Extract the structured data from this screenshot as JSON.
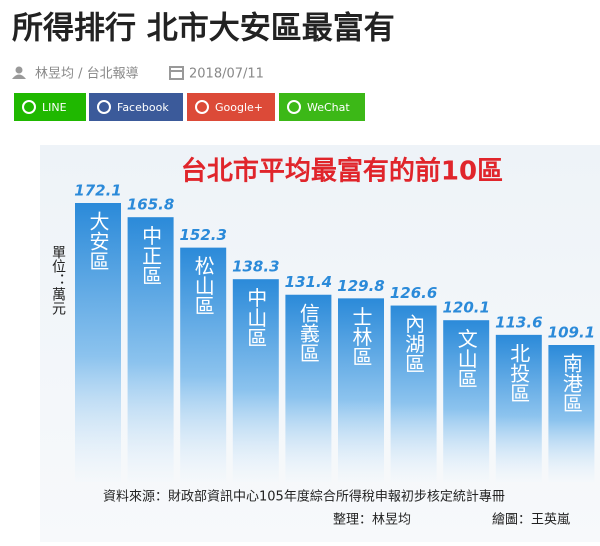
{
  "header": {
    "title": "所得排行 北市大安區最富有",
    "author": "林昱均 / 台北報導",
    "date": "2018/07/11"
  },
  "share_buttons": [
    {
      "label": "LINE",
      "color": "#1fb800"
    },
    {
      "label": "Facebook",
      "color": "#3b5a9a"
    },
    {
      "label": "Google+",
      "color": "#dc4a38"
    },
    {
      "label": "WeChat",
      "color": "#3cb817"
    }
  ],
  "chart_data": {
    "type": "bar",
    "title": "台北市平均最富有的前10區",
    "unit_label": "單位：萬元",
    "categories": [
      "大安區",
      "中正區",
      "松山區",
      "中山區",
      "信義區",
      "士林區",
      "內湖區",
      "文山區",
      "北投區",
      "南港區"
    ],
    "values": [
      172.1,
      165.8,
      152.3,
      138.3,
      131.4,
      129.8,
      126.6,
      120.1,
      113.6,
      109.1
    ],
    "color": "#2b8ad9",
    "source": "資料來源：財政部資訊中心105年度綜合所得稅申報初步核定統計專冊",
    "credits": [
      "整理：林昱均",
      "繪圖：王英嵐"
    ]
  }
}
